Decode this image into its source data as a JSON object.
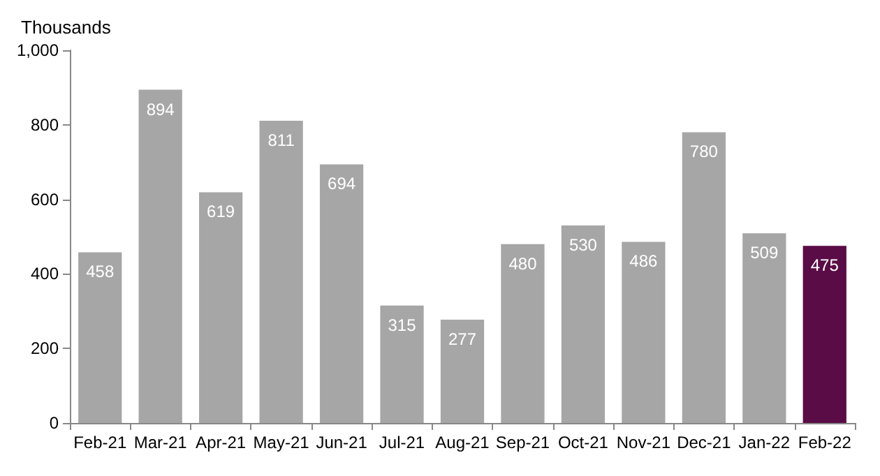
{
  "chart_data": {
    "type": "bar",
    "ylabel": "Thousands",
    "categories": [
      "Feb-21",
      "Mar-21",
      "Apr-21",
      "May-21",
      "Jun-21",
      "Jul-21",
      "Aug-21",
      "Sep-21",
      "Oct-21",
      "Nov-21",
      "Dec-21",
      "Jan-22",
      "Feb-22"
    ],
    "values": [
      458,
      894,
      619,
      811,
      694,
      315,
      277,
      480,
      530,
      486,
      780,
      509,
      475
    ],
    "colors": [
      "#a6a6a6",
      "#a6a6a6",
      "#a6a6a6",
      "#a6a6a6",
      "#a6a6a6",
      "#a6a6a6",
      "#a6a6a6",
      "#a6a6a6",
      "#a6a6a6",
      "#a6a6a6",
      "#a6a6a6",
      "#a6a6a6",
      "#5a0c46"
    ],
    "ylim": [
      0,
      1000
    ],
    "yticks": [
      0,
      200,
      400,
      600,
      800,
      {
        "value": 1000,
        "label": "1,000"
      }
    ],
    "data_labels": true,
    "grid": false
  }
}
